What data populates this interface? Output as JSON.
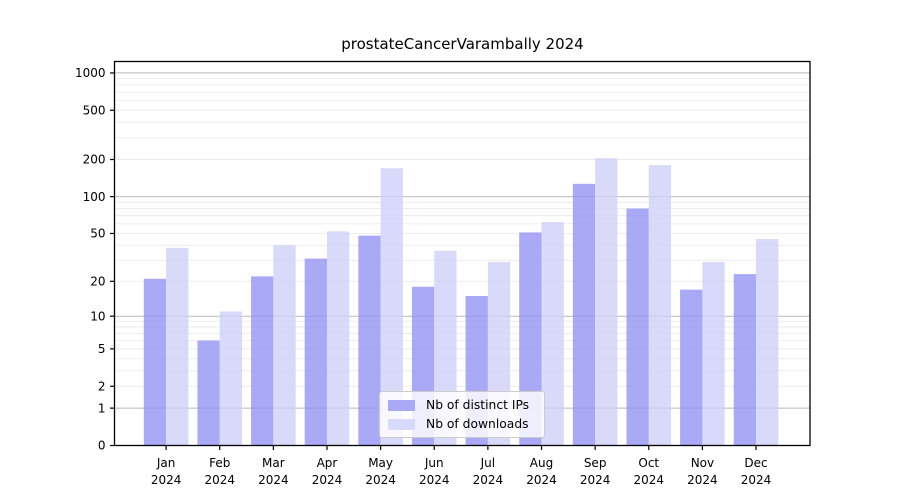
{
  "page": {
    "background": "#ffffff"
  },
  "chart_data": {
    "type": "bar",
    "title": "prostateCancerVarambally 2024",
    "categories": [
      "Jan",
      "Feb",
      "Mar",
      "Apr",
      "May",
      "Jun",
      "Jul",
      "Aug",
      "Sep",
      "Oct",
      "Nov",
      "Dec"
    ],
    "category_year": "2024",
    "series": [
      {
        "name": "Nb of distinct IPs",
        "color": "#a9a9f5",
        "values": [
          21,
          6,
          22,
          31,
          48,
          18,
          15,
          51,
          127,
          80,
          17,
          23
        ]
      },
      {
        "name": "Nb of downloads",
        "color": "#d9d9f9",
        "values": [
          38,
          11,
          40,
          52,
          170,
          36,
          29,
          62,
          205,
          180,
          29,
          45
        ]
      }
    ],
    "xlabel": "",
    "ylabel": "",
    "yscale": "log1p",
    "yticks": [
      0,
      1,
      2,
      5,
      10,
      20,
      50,
      100,
      200,
      500,
      1000
    ],
    "ylim": [
      0,
      1250
    ],
    "grid": true,
    "grid_major_color": "#b9b9b9",
    "grid_minor_color": "#ebebeb",
    "axis_color": "#000000",
    "legend_position": "lower center inside"
  }
}
